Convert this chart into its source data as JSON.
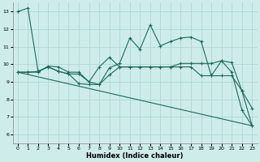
{
  "xlabel": "Humidex (Indice chaleur)",
  "background_color": "#ceecea",
  "grid_color": "#aed8d4",
  "line_color": "#1a6b5e",
  "xlim": [
    -0.5,
    23.5
  ],
  "ylim": [
    5.5,
    13.5
  ],
  "yticks": [
    6,
    7,
    8,
    9,
    10,
    11,
    12,
    13
  ],
  "xticks": [
    0,
    1,
    2,
    3,
    4,
    5,
    6,
    7,
    8,
    9,
    10,
    11,
    12,
    13,
    14,
    15,
    16,
    17,
    18,
    19,
    20,
    21,
    22,
    23
  ],
  "series1_x": [
    0,
    1,
    2,
    3,
    4,
    5,
    6,
    7,
    8,
    9,
    10,
    11,
    12,
    13,
    14,
    15,
    16,
    17,
    18,
    19,
    20,
    21,
    22,
    23
  ],
  "series1_y": [
    13.0,
    13.2,
    9.6,
    9.85,
    9.6,
    9.45,
    8.9,
    8.85,
    8.85,
    9.8,
    10.05,
    11.5,
    10.85,
    12.25,
    11.05,
    11.3,
    11.5,
    11.55,
    11.3,
    9.35,
    10.2,
    9.55,
    7.4,
    6.5
  ],
  "series2_x": [
    0,
    1,
    2,
    3,
    4,
    5,
    6,
    7,
    8,
    9,
    10,
    11,
    12,
    13,
    14,
    15,
    16,
    17,
    18,
    19,
    20,
    21,
    22,
    23
  ],
  "series2_y": [
    9.55,
    9.55,
    9.55,
    9.9,
    9.85,
    9.55,
    9.55,
    9.0,
    9.85,
    10.4,
    9.85,
    9.85,
    9.85,
    9.85,
    9.85,
    9.85,
    10.05,
    10.05,
    10.05,
    10.05,
    10.2,
    10.1,
    8.5,
    7.5
  ],
  "series3_x": [
    0,
    1,
    2,
    3,
    4,
    5,
    6,
    7,
    8,
    9,
    10,
    11,
    12,
    13,
    14,
    15,
    16,
    17,
    18,
    19,
    20,
    21,
    22,
    23
  ],
  "series3_y": [
    9.55,
    9.55,
    9.6,
    9.85,
    9.6,
    9.45,
    9.45,
    9.0,
    8.85,
    9.4,
    9.85,
    9.85,
    9.85,
    9.85,
    9.85,
    9.85,
    9.85,
    9.85,
    9.35,
    9.35,
    9.35,
    9.35,
    8.5,
    6.5
  ],
  "series4_x": [
    0,
    23
  ],
  "series4_y": [
    9.55,
    6.5
  ]
}
